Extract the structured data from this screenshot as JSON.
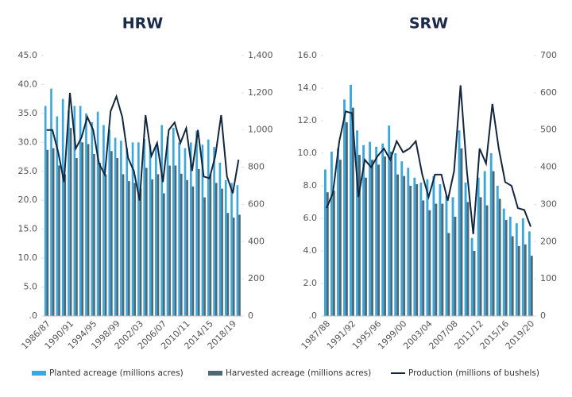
{
  "chart_data": [
    {
      "type": "bar-line",
      "title": "HRW",
      "categories": [
        "1986/87",
        null,
        null,
        null,
        "1990/91",
        null,
        null,
        null,
        "1994/95",
        null,
        null,
        null,
        "1998/99",
        null,
        null,
        null,
        "2002/03",
        null,
        null,
        null,
        "2006/07",
        null,
        null,
        null,
        "2010/11",
        null,
        null,
        null,
        "2014/15",
        null,
        null,
        null,
        "2018/19",
        null
      ],
      "series": [
        {
          "name": "Planted acreage (millions acres)",
          "color": "#3ba7dc",
          "kind": "bar",
          "values": [
            36.3,
            39.3,
            34.5,
            37.5,
            35.5,
            36.3,
            36.3,
            35.0,
            33.5,
            35.3,
            33.0,
            32.2,
            30.8,
            30.3,
            29.0,
            30.0,
            30.0,
            30.6,
            29.6,
            29.5,
            33.0,
            31.0,
            32.5,
            30.0,
            29.0,
            30.0,
            32.0,
            29.6,
            30.5,
            29.2,
            26.5,
            23.5,
            23.0,
            22.6
          ]
        },
        {
          "name": "Harvested acreage (millions acres)",
          "color": "#4f6875",
          "kind": "bar",
          "values": [
            28.7,
            29.0,
            26.0,
            24.5,
            32.5,
            27.3,
            30.0,
            29.7,
            28.0,
            26.5,
            24.5,
            28.5,
            27.3,
            24.5,
            23.3,
            23.0,
            22.0,
            25.6,
            23.6,
            24.5,
            21.2,
            26.0,
            26.0,
            24.6,
            23.5,
            22.4,
            25.4,
            20.5,
            24.5,
            23.0,
            22.0,
            17.8,
            17.0,
            17.5
          ]
        },
        {
          "name": "Production (millions of bushels)",
          "color": "#13263d",
          "kind": "line",
          "axis": "y2",
          "values": [
            1000,
            1000,
            880,
            720,
            1200,
            900,
            960,
            1070,
            1000,
            820,
            760,
            1100,
            1180,
            1070,
            850,
            780,
            620,
            1080,
            860,
            930,
            720,
            1000,
            1040,
            930,
            1010,
            780,
            1000,
            750,
            740,
            860,
            1080,
            750,
            660,
            840
          ]
        }
      ],
      "ylim": [
        0,
        45
      ],
      "yticks": [
        {
          "value": 0,
          "label": ".0"
        },
        {
          "value": 5,
          "label": "5.0"
        },
        {
          "value": 10,
          "label": "10.0"
        },
        {
          "value": 15,
          "label": "15.0"
        },
        {
          "value": 20,
          "label": "20.0"
        },
        {
          "value": 25,
          "label": "25.0"
        },
        {
          "value": 30,
          "label": "30.0"
        },
        {
          "value": 35,
          "label": "35.0"
        },
        {
          "value": 40,
          "label": "40.0"
        },
        {
          "value": 45,
          "label": "45.0"
        }
      ],
      "y2lim": [
        0,
        1400
      ],
      "y2ticks": [
        0,
        200,
        400,
        600,
        800,
        {
          "value": 1000,
          "label": "1,000"
        },
        {
          "value": 1200,
          "label": "1,200"
        },
        {
          "value": 1400,
          "label": "1,400"
        }
      ],
      "legend": "bottom"
    },
    {
      "type": "bar-line",
      "title": "SRW",
      "categories": [
        "1987/88",
        null,
        null,
        null,
        "1991/92",
        null,
        null,
        null,
        "1995/96",
        null,
        null,
        null,
        "1999/00",
        null,
        null,
        null,
        "2003/04",
        null,
        null,
        null,
        "2007/08",
        null,
        null,
        null,
        "2011/12",
        null,
        null,
        null,
        "2015/16",
        null,
        null,
        null,
        "2019/20"
      ],
      "series": [
        {
          "color": "#3ba7dc",
          "kind": "bar",
          "values": [
            9.0,
            10.1,
            10.3,
            13.3,
            14.2,
            11.4,
            10.5,
            10.7,
            10.4,
            10.6,
            11.7,
            10.0,
            9.5,
            9.1,
            8.5,
            8.2,
            8.4,
            8.6,
            8.1,
            7.4,
            7.3,
            11.4,
            8.2,
            4.8,
            8.5,
            8.9,
            10.0,
            8.0,
            6.6,
            6.1,
            5.7,
            6.0,
            5.2
          ]
        },
        {
          "color": "#4f6875",
          "kind": "bar",
          "values": [
            7.6,
            7.7,
            9.6,
            11.9,
            12.8,
            9.9,
            8.5,
            9.6,
            9.3,
            9.8,
            10.1,
            8.7,
            8.6,
            8.0,
            8.1,
            7.1,
            6.5,
            6.9,
            6.9,
            5.1,
            6.1,
            10.3,
            7.0,
            4.0,
            7.3,
            6.8,
            8.9,
            7.2,
            5.9,
            4.9,
            4.3,
            4.4,
            3.7
          ]
        },
        {
          "color": "#13263d",
          "kind": "line",
          "axis": "y2",
          "values": [
            290,
            330,
            470,
            550,
            545,
            320,
            420,
            400,
            430,
            450,
            420,
            470,
            440,
            450,
            470,
            380,
            320,
            380,
            380,
            310,
            390,
            620,
            390,
            220,
            450,
            410,
            570,
            450,
            360,
            350,
            290,
            285,
            240
          ]
        }
      ],
      "ylim": [
        0,
        16
      ],
      "yticks": [
        {
          "value": 0,
          "label": ".0"
        },
        {
          "value": 2,
          "label": "2.0"
        },
        {
          "value": 4,
          "label": "4.0"
        },
        {
          "value": 6,
          "label": "6.0"
        },
        {
          "value": 8,
          "label": "8.0"
        },
        {
          "value": 10,
          "label": "10.0"
        },
        {
          "value": 12,
          "label": "12.0"
        },
        {
          "value": 14,
          "label": "14.0"
        },
        {
          "value": 16,
          "label": "16.0"
        }
      ],
      "y2lim": [
        0,
        700
      ],
      "y2ticks": [
        0,
        100,
        200,
        300,
        400,
        500,
        600,
        700
      ]
    }
  ]
}
